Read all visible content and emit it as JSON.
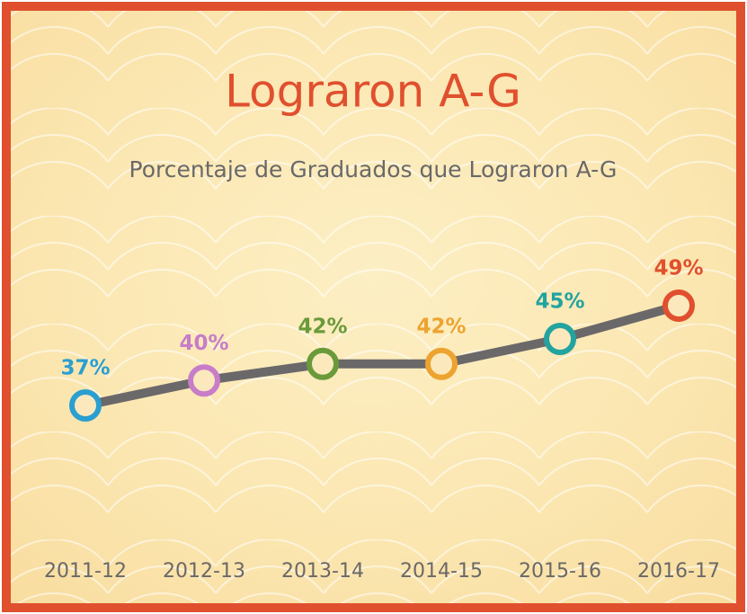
{
  "chart_data": {
    "type": "line",
    "title": "Lograron A-G",
    "subtitle": "Porcentaje de Graduados que Lograron A-G",
    "categories": [
      "2011-12",
      "2012-13",
      "2013-14",
      "2014-15",
      "2015-16",
      "2016-17"
    ],
    "series": [
      {
        "color": "#6b6869",
        "values": [
          37,
          40,
          42,
          42,
          45,
          49
        ],
        "value_labels": [
          "37%",
          "40%",
          "42%",
          "42%",
          "45%",
          "49%"
        ],
        "point_colors": [
          "#2a9fd0",
          "#c77dc8",
          "#6a9a3a",
          "#eda330",
          "#22a3a0",
          "#e0502e"
        ]
      }
    ],
    "title_color": "#e0502e",
    "frame_color": "#e0502e"
  }
}
